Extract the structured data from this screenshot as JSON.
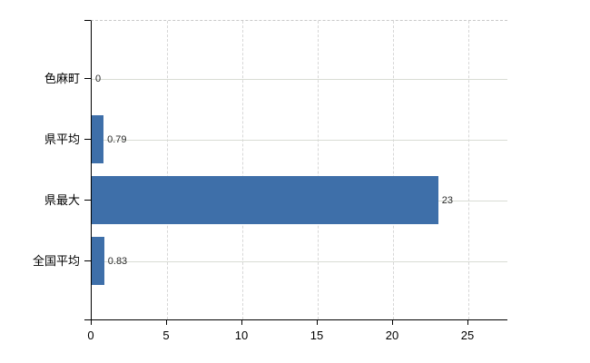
{
  "chart_data": {
    "type": "bar",
    "orientation": "horizontal",
    "categories": [
      "色麻町",
      "県平均",
      "県最大",
      "全国平均"
    ],
    "values": [
      0,
      0.79,
      23,
      0.83
    ],
    "value_labels": [
      "0",
      "0.79",
      "23",
      "0.83"
    ],
    "title": "",
    "xlabel": "",
    "ylabel": "",
    "x_ticks": [
      0,
      5,
      10,
      15,
      20,
      25
    ],
    "x_tick_labels": [
      "0",
      "5",
      "10",
      "15",
      "20",
      "25"
    ],
    "xlim": [
      0,
      27.65
    ],
    "grid": true,
    "legend": "none",
    "colors": {
      "bar": "#3e6fa9",
      "gridline_h": "#d8dcd4",
      "gridline_v": "#d7d7d7",
      "axis": "#000000",
      "top_border": "#c9c9c9",
      "category_text": "#000000",
      "value_text": "#2b2b2b"
    }
  }
}
